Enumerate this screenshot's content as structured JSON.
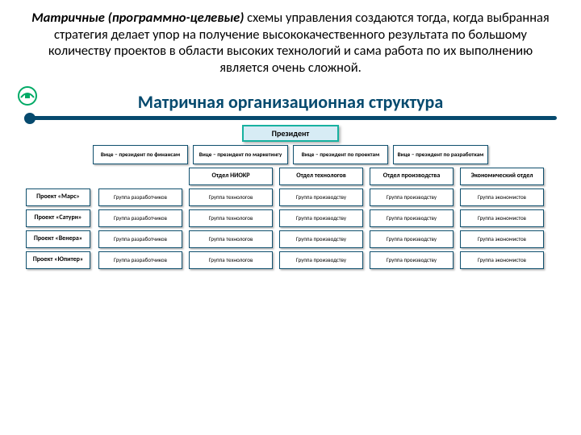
{
  "intro": {
    "bold": "Матричные (программно-целевые)",
    "rest": " схемы управления создаются тогда, когда выбранная стратегия делает упор на получение высококачественного результата по большому количеству проектов в области высоких технологий и сама работа по их выполнению является очень сложной."
  },
  "slide": {
    "title": "Матричная организационная структура",
    "president": "Президент",
    "vps": [
      "Вице – президент по финансам",
      "Вице – президент по маркетингу",
      "Вице – президент по проектам",
      "Вице – президент по разработкам"
    ],
    "depts": [
      "Отдел НИОКР",
      "Отдел технологов",
      "Отдел производства",
      "Экономический отдел"
    ],
    "dept_offset_col": 1,
    "projects": [
      "Проект «Марс»",
      "Проект «Сатурн»",
      "Проект «Венера»",
      "Проект «Юпитер»"
    ],
    "group_labels": [
      "Группа разработчиков",
      "Группа технологов",
      "Группа производству",
      "Группа экономистов"
    ],
    "colors": {
      "title": "#064a6e",
      "box_border": "#10506e",
      "president_border": "#17b1a0",
      "president_bg": "#d7ecf5",
      "shadow": "rgba(0,0,0,.3)"
    },
    "layout": {
      "cols": 6,
      "proj_rows": 4
    }
  }
}
